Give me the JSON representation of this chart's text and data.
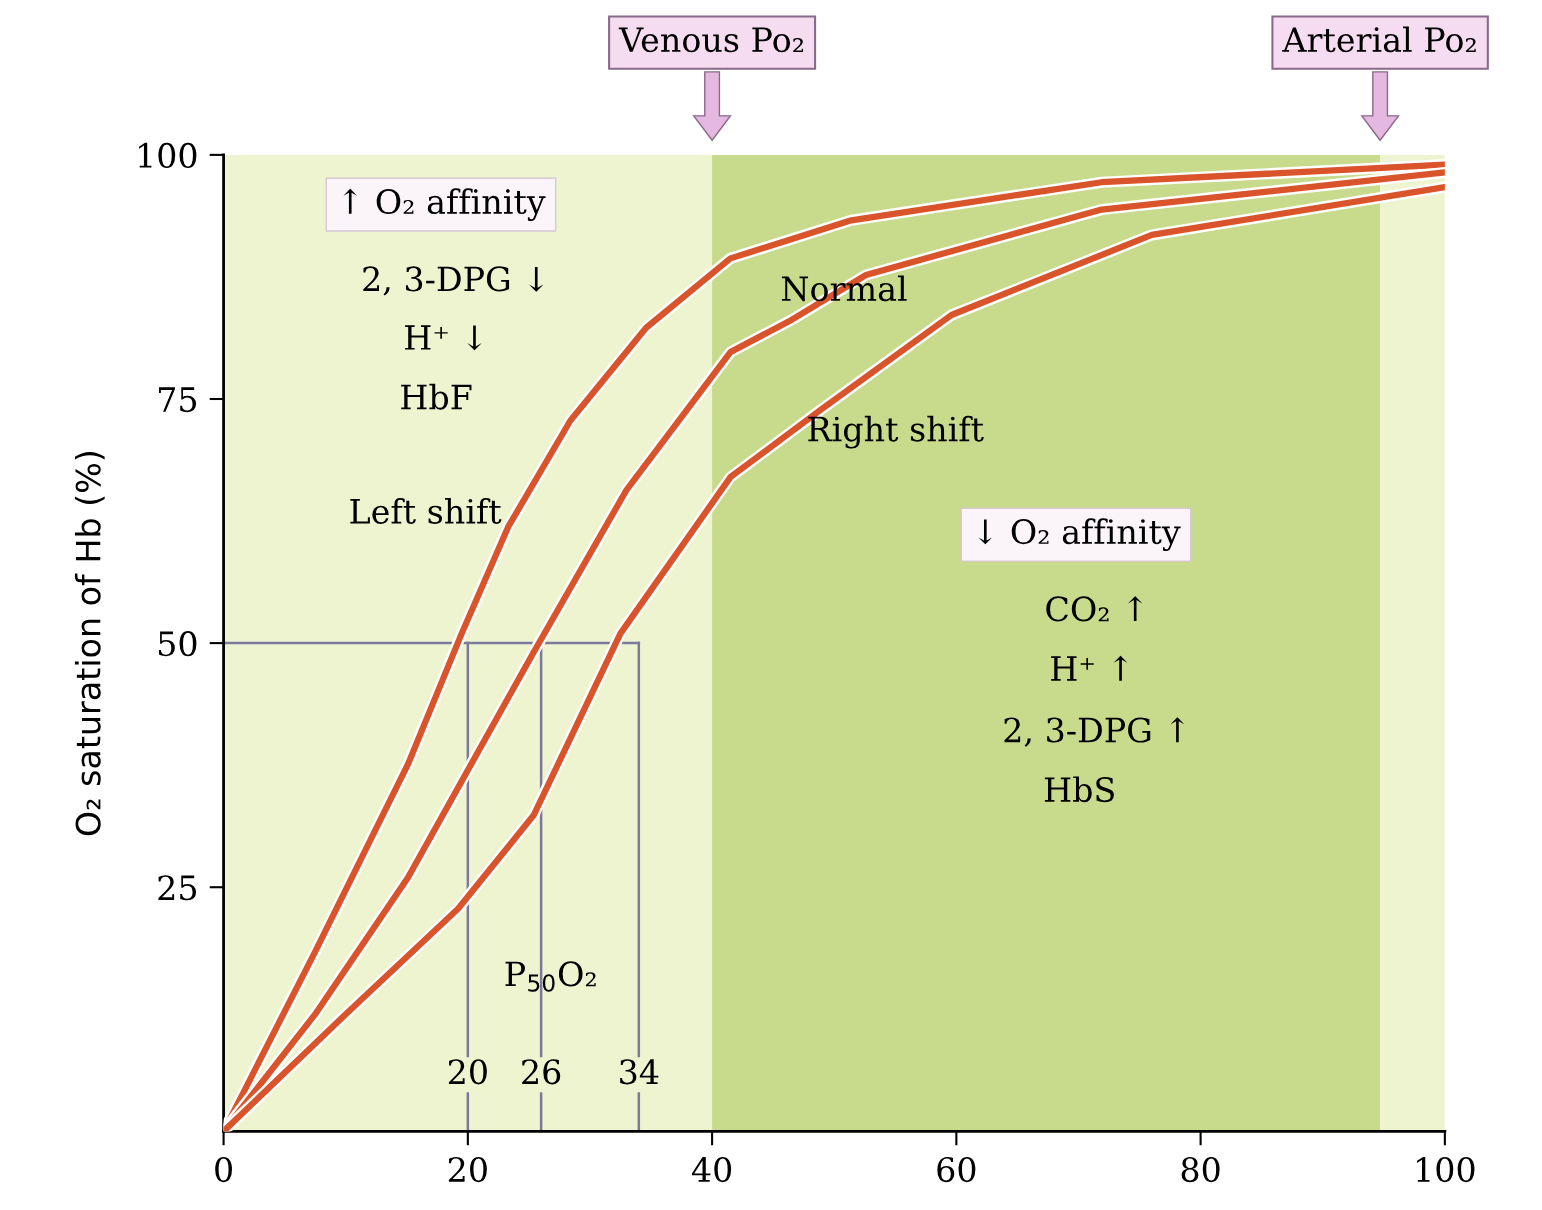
{
  "chart_data": {
    "type": "line",
    "ylabel": "O₂ saturation of Hb (%)",
    "xlim": [
      0,
      100
    ],
    "ylim": [
      0,
      100
    ],
    "xticks": [
      0,
      20,
      40,
      60,
      80,
      100
    ],
    "yticks": [
      25,
      50,
      75,
      100
    ],
    "grid": false,
    "line_style": "solid",
    "marker": "none",
    "series": [
      {
        "color": "#d9542a",
        "x": [
          0,
          7.5,
          15.1,
          19.5,
          23.3,
          28.4,
          34.6,
          41.5,
          51.4,
          71.9,
          100
        ],
        "values": [
          0,
          18.4,
          37.6,
          51,
          61.9,
          72.8,
          82.3,
          89.4,
          93.3,
          97.2,
          99
        ]
      },
      {
        "color": "#d9542a",
        "x": [
          0,
          7.5,
          15.1,
          25.4,
          33,
          41.5,
          46.5,
          52.6,
          71.9,
          100
        ],
        "values": [
          0,
          12,
          26,
          49.1,
          65.7,
          79.8,
          83.1,
          87.7,
          94.4,
          98.2
        ]
      },
      {
        "color": "#d9542a",
        "x": [
          0,
          10,
          19.2,
          25.4,
          32.5,
          41.5,
          48.9,
          59.6,
          76,
          100
        ],
        "values": [
          0,
          12,
          22.8,
          32.4,
          51,
          67,
          73.9,
          83.6,
          91.8,
          96.7
        ]
      }
    ],
    "bands": [
      {
        "axis": "x",
        "from": 0,
        "to": 40,
        "color": "#eff4d0"
      },
      {
        "axis": "x",
        "from": 40,
        "to": 94.7,
        "color": "#c8da8c"
      },
      {
        "axis": "x",
        "from": 94.7,
        "to": 100,
        "color": "#eff4d0"
      }
    ],
    "ref_lines": [
      {
        "axis": "y",
        "value": 50,
        "color": "#7c7a9c"
      },
      {
        "axis": "x",
        "value": 20,
        "label": "20",
        "color": "#7c7a9c"
      },
      {
        "axis": "x",
        "value": 26,
        "label": "26",
        "color": "#7c7a9c"
      },
      {
        "axis": "x",
        "value": 34,
        "label": "34",
        "color": "#7c7a9c"
      }
    ],
    "annotations": [
      "Venous Po₂",
      "Arterial Po₂",
      "↑ O₂ affinity",
      "2, 3-DPG ↓",
      "H⁺ ↓",
      "HbF",
      "Left shift",
      "Normal",
      "Right shift",
      "↓ O₂ affinity",
      "CO₂ ↑",
      "H⁺ ↑",
      "2, 3-DPG ↑",
      "HbS",
      "P$_{50}$O₂"
    ]
  }
}
